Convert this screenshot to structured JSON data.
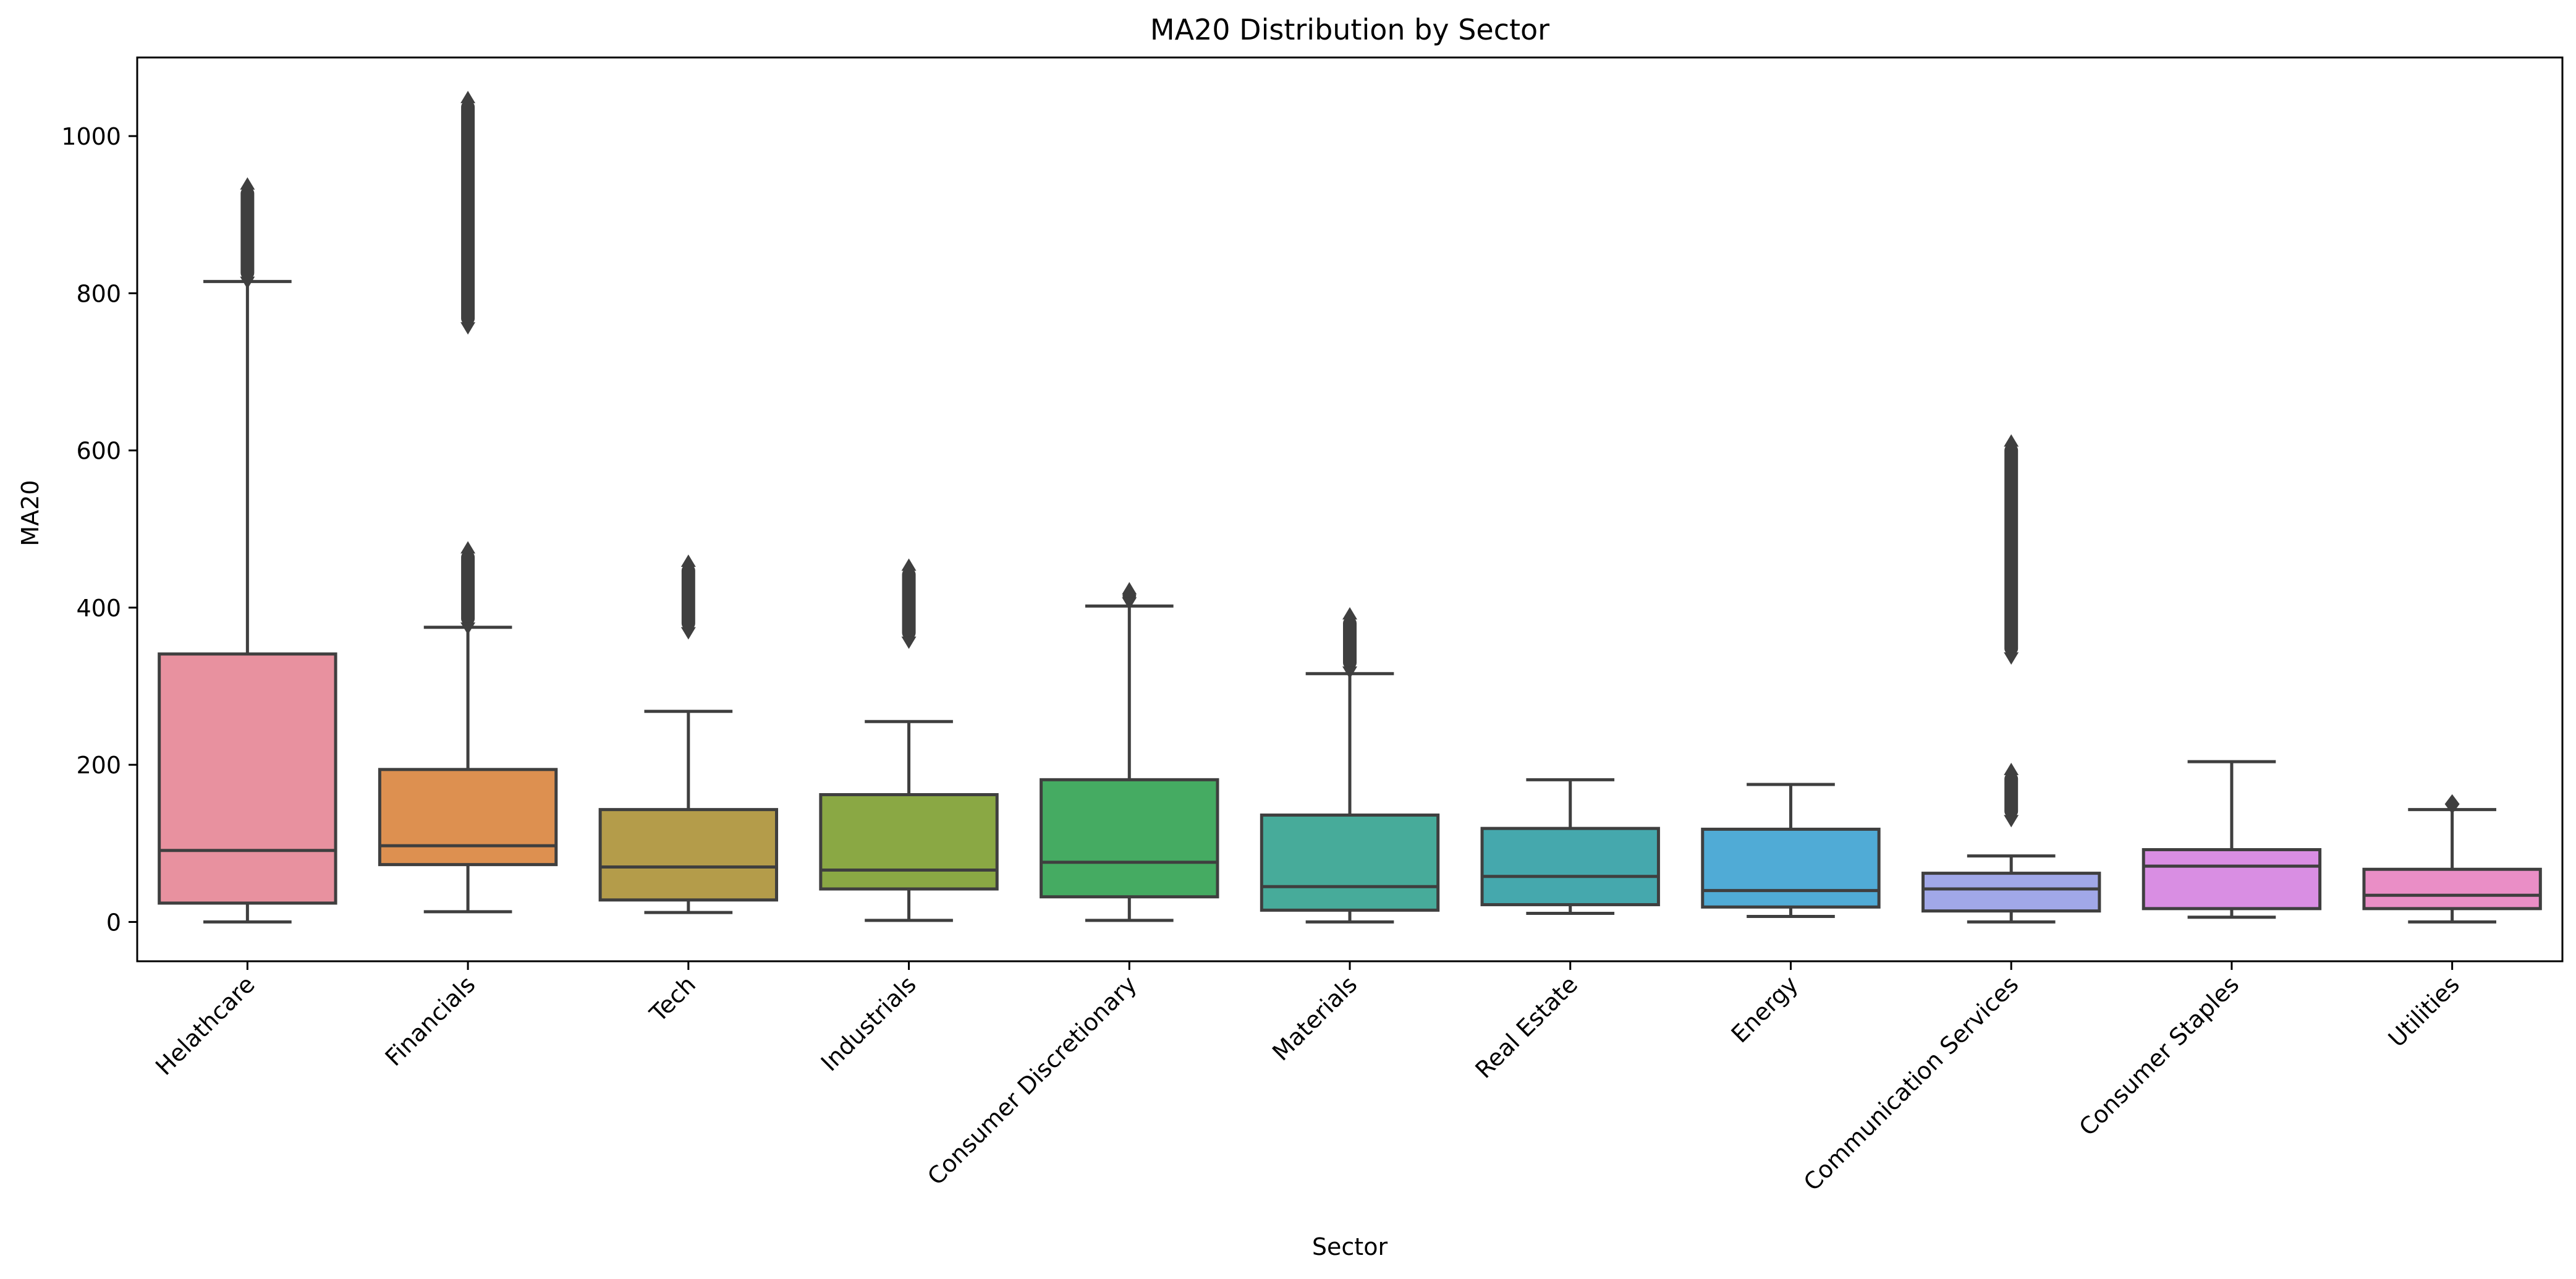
{
  "chart_data": {
    "type": "boxplot",
    "title": "MA20 Distribution by Sector",
    "xlabel": "Sector",
    "ylabel": "MA20",
    "ylim": [
      -50,
      1100
    ],
    "yticks": [
      0,
      200,
      400,
      600,
      800,
      1000
    ],
    "grid": false,
    "legend": "none",
    "categories": [
      "Helathcare",
      "Financials",
      "Tech",
      "Industrials",
      "Consumer Discretionary",
      "Materials",
      "Real Estate",
      "Energy",
      "Communication Services",
      "Consumer Staples",
      "Utilities"
    ],
    "boxes": [
      {
        "name": "Helathcare",
        "color": "#e8919f",
        "whisker_low": 0,
        "q1": 24,
        "median": 91,
        "q3": 341,
        "whisker_high": 815,
        "outlier_ranges": [
          [
            818,
            935
          ]
        ],
        "outliers": []
      },
      {
        "name": "Financials",
        "color": "#dd9050",
        "whisker_low": 13,
        "q1": 73,
        "median": 97,
        "q3": 194,
        "whisker_high": 375,
        "outlier_ranges": [
          [
            378,
            472
          ],
          [
            760,
            1045
          ]
        ],
        "outliers": []
      },
      {
        "name": "Tech",
        "color": "#b49c4a",
        "whisker_low": 12,
        "q1": 28,
        "median": 70,
        "q3": 143,
        "whisker_high": 268,
        "outlier_ranges": [
          [
            372,
            455
          ]
        ],
        "outliers": []
      },
      {
        "name": "Industrials",
        "color": "#8aa844",
        "whisker_low": 2,
        "q1": 42,
        "median": 66,
        "q3": 162,
        "whisker_high": 255,
        "outlier_ranges": [
          [
            360,
            450
          ]
        ],
        "outliers": []
      },
      {
        "name": "Consumer Discretionary",
        "color": "#45ab62",
        "whisker_low": 2,
        "q1": 32,
        "median": 76,
        "q3": 181,
        "whisker_high": 402,
        "outlier_ranges": [
          [
            410,
            420
          ]
        ],
        "outliers": []
      },
      {
        "name": "Materials",
        "color": "#47ab9a",
        "whisker_low": 0,
        "q1": 15,
        "median": 45,
        "q3": 136,
        "whisker_high": 316,
        "outlier_ranges": [
          [
            322,
            388
          ]
        ],
        "outliers": []
      },
      {
        "name": "Real Estate",
        "color": "#45a8ad",
        "whisker_low": 11,
        "q1": 22,
        "median": 58,
        "q3": 119,
        "whisker_high": 181,
        "outlier_ranges": [],
        "outliers": []
      },
      {
        "name": "Energy",
        "color": "#50abd6",
        "whisker_low": 7,
        "q1": 19,
        "median": 40,
        "q3": 118,
        "whisker_high": 175,
        "outlier_ranges": [],
        "outliers": []
      },
      {
        "name": "Communication Services",
        "color": "#a1a8e8",
        "whisker_low": 0,
        "q1": 14,
        "median": 42,
        "q3": 62,
        "whisker_high": 84,
        "outlier_ranges": [
          [
            133,
            190
          ],
          [
            340,
            608
          ]
        ],
        "outliers": []
      },
      {
        "name": "Consumer Staples",
        "color": "#d98ee3",
        "whisker_low": 6,
        "q1": 17,
        "median": 71,
        "q3": 92,
        "whisker_high": 204,
        "outlier_ranges": [],
        "outliers": []
      },
      {
        "name": "Utilities",
        "color": "#ea8ec6",
        "whisker_low": 0,
        "q1": 17,
        "median": 34,
        "q3": 67,
        "whisker_high": 143,
        "outlier_ranges": [],
        "outliers": [
          150
        ]
      }
    ]
  }
}
